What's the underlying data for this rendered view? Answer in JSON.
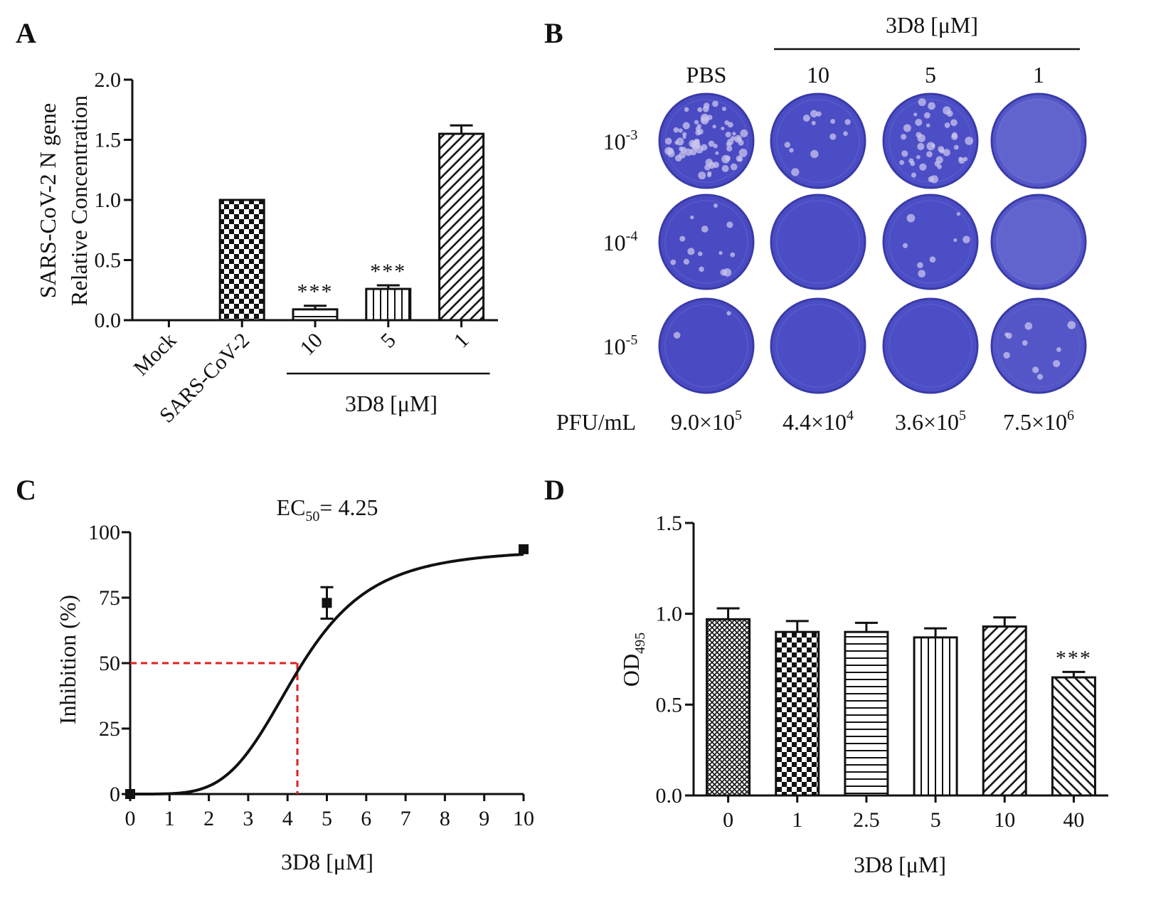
{
  "panels": {
    "a": "A",
    "b": "B",
    "c": "C",
    "d": "D"
  },
  "chart_data": [
    {
      "type": "bar",
      "panel": "A",
      "categories": [
        "Mock",
        "SARS-CoV-2",
        "10",
        "5",
        "1"
      ],
      "values": [
        0,
        1.0,
        0.09,
        0.26,
        1.55
      ],
      "errors": [
        0,
        0,
        0.03,
        0.03,
        0.07
      ],
      "patterns": [
        "none",
        "checker",
        "horizontal-lines",
        "vertical-lines",
        "diagonal-lines"
      ],
      "significance": [
        "",
        "",
        "***",
        "***",
        ""
      ],
      "ylabel_line1": "SARS-CoV-2 N gene",
      "ylabel_line2": "Relative Concentration",
      "group_label": "3D8 [μM]",
      "ylim": [
        0,
        2.0
      ],
      "yticks": [
        "0.0",
        "0.5",
        "1.0",
        "1.5",
        "2.0"
      ],
      "ytick_values": [
        0,
        0.5,
        1.0,
        1.5,
        2.0
      ]
    },
    {
      "type": "table",
      "panel": "B",
      "header": "3D8 [μM]",
      "columns": [
        "PBS",
        "10",
        "5",
        "1"
      ],
      "rows": [
        {
          "base": "10",
          "exp": "-3"
        },
        {
          "base": "10",
          "exp": "-4"
        },
        {
          "base": "10",
          "exp": "-5"
        }
      ],
      "plaque_counts": [
        [
          70,
          12,
          40,
          0
        ],
        [
          14,
          0,
          8,
          0
        ],
        [
          2,
          0,
          0,
          10
        ]
      ],
      "plate_fill": [
        "#4a4bc3",
        "#4b4dc4",
        "#4c4ec6",
        "#5456c8"
      ],
      "pfu_label": "PFU/mL",
      "pfu": [
        {
          "mant": "9.0×10",
          "exp": "5"
        },
        {
          "mant": "4.4×10",
          "exp": "4"
        },
        {
          "mant": "3.6×10",
          "exp": "5"
        },
        {
          "mant": "7.5×10",
          "exp": "6"
        }
      ]
    },
    {
      "type": "line",
      "panel": "C",
      "title_prefix": "EC",
      "title_sub": "50",
      "title_suffix": "= 4.25",
      "ec50": 4.25,
      "hill": 4.5,
      "top": 93.5,
      "bottom": 0,
      "x": [
        0,
        5,
        10
      ],
      "y": [
        0,
        73,
        93.5
      ],
      "yerr": [
        0,
        6,
        0
      ],
      "xlabel": "3D8 [μM]",
      "ylabel": "Inhibition (%)",
      "xlim": [
        0,
        10
      ],
      "ylim": [
        0,
        100
      ],
      "xticks": [
        "0",
        "1",
        "2",
        "3",
        "4",
        "5",
        "6",
        "7",
        "8",
        "9",
        "10"
      ],
      "xtick_values": [
        0,
        1,
        2,
        3,
        4,
        5,
        6,
        7,
        8,
        9,
        10
      ],
      "yticks": [
        "0",
        "25",
        "50",
        "75",
        "100"
      ],
      "ytick_values": [
        0,
        25,
        50,
        75,
        100
      ],
      "guide_y": 50,
      "guide_color": "#e02020"
    },
    {
      "type": "bar",
      "panel": "D",
      "categories": [
        "0",
        "1",
        "2.5",
        "5",
        "10",
        "40"
      ],
      "values": [
        0.97,
        0.9,
        0.9,
        0.87,
        0.93,
        0.65
      ],
      "errors": [
        0.06,
        0.06,
        0.05,
        0.05,
        0.05,
        0.03
      ],
      "patterns": [
        "crosshatch",
        "checker",
        "horizontal-lines",
        "vertical-lines",
        "diagonal-lines",
        "back-diagonal-lines"
      ],
      "significance": [
        "",
        "",
        "",
        "",
        "",
        "***"
      ],
      "ylabel_main": "OD",
      "ylabel_sub": "495",
      "xlabel": "3D8 [μM]",
      "ylim": [
        0,
        1.5
      ],
      "yticks": [
        "0.0",
        "0.5",
        "1.0",
        "1.5"
      ],
      "ytick_values": [
        0,
        0.5,
        1.0,
        1.5
      ]
    }
  ]
}
